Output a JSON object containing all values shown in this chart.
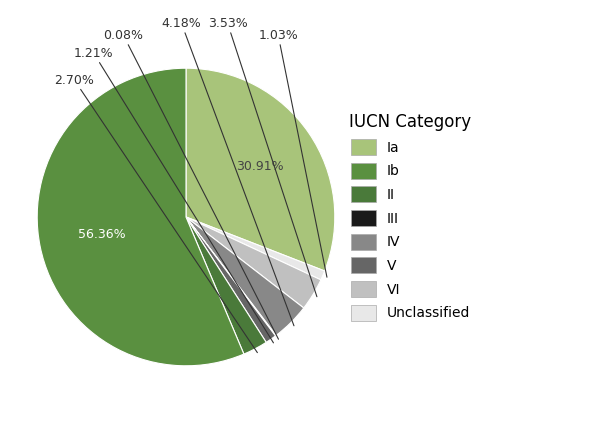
{
  "categories": [
    "Ia",
    "Unclassified",
    "VI",
    "IV",
    "III",
    "V",
    "II",
    "Ib"
  ],
  "values": [
    30.91,
    1.03,
    3.53,
    4.18,
    0.08,
    1.21,
    2.7,
    56.36
  ],
  "colors": [
    "#a8c47a",
    "#e8e8e8",
    "#c0c0c0",
    "#888888",
    "#1a1a1a",
    "#666666",
    "#4a7a3a",
    "#5a9040"
  ],
  "legend_order": [
    "Ia",
    "Ib",
    "II",
    "III",
    "IV",
    "V",
    "VI",
    "Unclassified"
  ],
  "legend_colors": [
    "#a8c47a",
    "#5a9040",
    "#4a7a3a",
    "#1a1a1a",
    "#888888",
    "#666666",
    "#c0c0c0",
    "#e8e8e8"
  ],
  "title": "IUCN Category",
  "background_color": "#ffffff",
  "startangle": 90,
  "inside_label_indices": [
    0,
    7
  ],
  "inside_labels": [
    "30.91%",
    "56.36%"
  ],
  "outside_label_indices": [
    1,
    2,
    3,
    4,
    5,
    6
  ],
  "outside_labels": [
    "1.03%",
    "3.53%",
    "4.18%",
    "0.08%",
    "1.21%",
    "2.70%"
  ]
}
